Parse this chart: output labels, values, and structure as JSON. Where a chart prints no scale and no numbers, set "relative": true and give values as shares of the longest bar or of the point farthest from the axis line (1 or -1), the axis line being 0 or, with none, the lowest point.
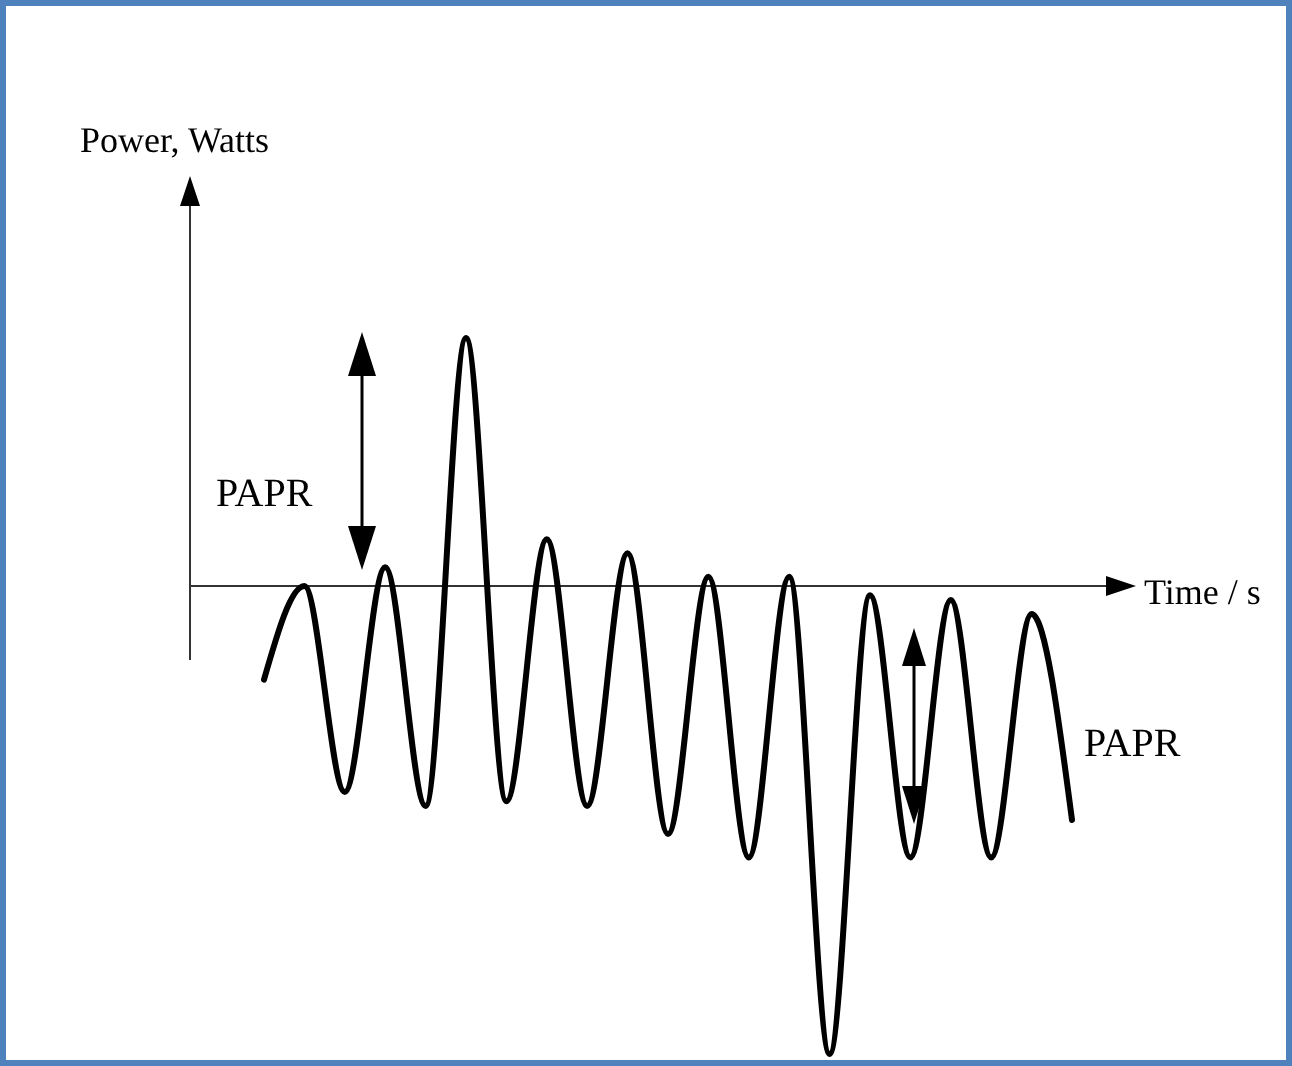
{
  "chart_data": {
    "type": "line",
    "relative": true,
    "xlabel": "Time / s",
    "ylabel": "Power, Watts",
    "categories": [
      null,
      null,
      null,
      null,
      null,
      null,
      null,
      null,
      null,
      null,
      null,
      null,
      null,
      null,
      null,
      null,
      null,
      null,
      null,
      null,
      null
    ],
    "values": [
      -0.2,
      0,
      -0.44,
      0.04,
      -0.47,
      0.53,
      -0.46,
      0.1,
      -0.47,
      0.07,
      -0.53,
      0.02,
      -0.58,
      0.02,
      -1,
      -0.02,
      -0.58,
      -0.03,
      -0.58,
      -0.06,
      -0.5
    ],
    "color": "#000000",
    "annotations": [
      "PAPR",
      "PAPR"
    ]
  }
}
